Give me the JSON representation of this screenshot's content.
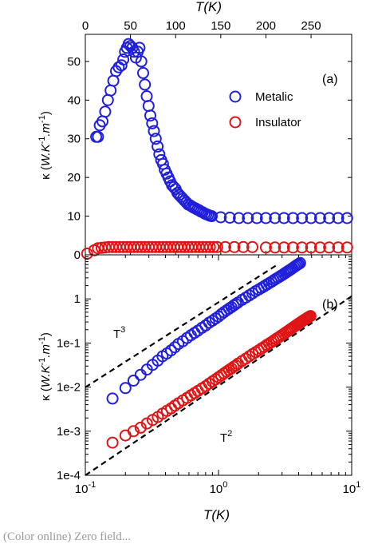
{
  "chart_data": [
    {
      "type": "scatter",
      "panel_label": "(a)",
      "xlabel": "T(K)",
      "ylabel": "κ (W.K-1.m-1)",
      "xlim": [
        0,
        295
      ],
      "ylim": [
        0,
        57
      ],
      "x_ticks": [
        "0",
        "50",
        "100",
        "150",
        "200",
        "250"
      ],
      "y_ticks": [
        "0",
        "10",
        "20",
        "30",
        "40",
        "50"
      ],
      "x_tick_values": [
        0,
        50,
        100,
        150,
        200,
        250
      ],
      "y_tick_values": [
        0,
        10,
        20,
        30,
        40,
        50
      ],
      "legend_position": "top-right",
      "series": [
        {
          "name": "Metalic",
          "color": "#1f1fdc",
          "x": [
            12,
            14,
            16,
            19,
            22,
            25,
            28,
            31,
            34,
            37,
            40,
            42,
            44,
            46,
            48,
            50,
            52,
            54,
            56,
            58,
            60,
            62,
            64,
            66,
            68,
            70,
            72,
            74,
            76,
            78,
            80,
            82,
            84,
            86,
            88,
            90,
            92,
            94,
            96,
            98,
            100,
            102,
            104,
            106,
            108,
            110,
            112,
            114,
            116,
            118,
            120,
            122,
            124,
            126,
            128,
            130,
            132,
            134,
            136,
            138,
            140,
            150,
            160,
            170,
            180,
            190,
            200,
            210,
            220,
            230,
            240,
            250,
            260,
            270,
            280,
            290
          ],
          "y": [
            30.5,
            30.5,
            33.5,
            34.5,
            37.0,
            40.0,
            42.5,
            45.0,
            47.5,
            48.5,
            49.0,
            50.5,
            52.5,
            53.5,
            54.5,
            54.0,
            53.5,
            52.5,
            51.0,
            52.5,
            53.5,
            50.0,
            47.0,
            44.0,
            41.0,
            38.5,
            36.0,
            34.0,
            32.0,
            30.0,
            28.0,
            26.0,
            24.5,
            23.5,
            22.0,
            21.0,
            20.0,
            19.0,
            18.0,
            17.5,
            17.0,
            16.0,
            15.5,
            15.0,
            14.5,
            14.0,
            13.5,
            13.0,
            12.8,
            12.5,
            12.2,
            12.0,
            11.7,
            11.5,
            11.2,
            11.0,
            10.7,
            10.5,
            10.3,
            10.1,
            10.0,
            9.7,
            9.6,
            9.5,
            9.5,
            9.5,
            9.5,
            9.5,
            9.5,
            9.5,
            9.5,
            9.5,
            9.5,
            9.5,
            9.5,
            9.5
          ]
        },
        {
          "name": "Insulator",
          "color": "#e01414",
          "x": [
            2,
            10,
            14,
            18,
            22,
            26,
            30,
            34,
            38,
            42,
            46,
            50,
            54,
            58,
            62,
            66,
            70,
            74,
            78,
            82,
            86,
            90,
            94,
            98,
            102,
            106,
            110,
            114,
            118,
            122,
            126,
            130,
            134,
            138,
            142,
            146,
            155,
            165,
            175,
            185,
            200,
            210,
            220,
            230,
            240,
            250,
            260,
            270,
            280,
            290
          ],
          "y": [
            0.3,
            1.2,
            1.7,
            1.8,
            1.9,
            2.0,
            2.0,
            2.0,
            2.0,
            2.0,
            2.0,
            2.0,
            2.0,
            2.0,
            2.0,
            2.0,
            2.0,
            2.0,
            2.0,
            2.0,
            2.0,
            2.0,
            2.0,
            2.0,
            2.0,
            2.0,
            2.0,
            2.0,
            2.0,
            2.0,
            2.0,
            2.0,
            2.0,
            2.0,
            2.0,
            2.0,
            2.0,
            2.0,
            2.0,
            2.0,
            1.9,
            1.9,
            1.9,
            1.9,
            1.9,
            1.9,
            1.9,
            1.9,
            1.9,
            1.9
          ]
        }
      ]
    },
    {
      "type": "scatter",
      "scale": "log-log",
      "panel_label": "(b)",
      "xlabel": "T(K)",
      "ylabel": "κ (W.K-1.m-1)",
      "xlim": [
        0.1,
        10
      ],
      "ylim": [
        0.0001,
        10
      ],
      "x_ticks": [
        "10-1",
        "100",
        "101"
      ],
      "y_ticks": [
        "1e-4",
        "1e-3",
        "1e-2",
        "1e-1",
        "1"
      ],
      "x_tick_values": [
        0.1,
        1,
        10
      ],
      "y_tick_values": [
        0.0001,
        0.001,
        0.01,
        0.1,
        1
      ],
      "annotations": [
        "T3",
        "T2"
      ],
      "reference_lines": [
        {
          "label": "T3",
          "x": [
            0.1,
            2.7
          ],
          "y": [
            0.0099,
            5.7
          ],
          "style": "dashed"
        },
        {
          "label": "T2",
          "x": [
            0.1,
            10
          ],
          "y": [
            0.0001,
            1.15
          ],
          "style": "dashed"
        }
      ],
      "series": [
        {
          "name": "Metalic",
          "color": "#1f1fdc",
          "x": [
            0.16,
            0.2,
            0.23,
            0.26,
            0.29,
            0.32,
            0.35,
            0.38,
            0.41,
            0.44,
            0.47,
            0.5,
            0.54,
            0.58,
            0.62,
            0.66,
            0.7,
            0.75,
            0.8,
            0.85,
            0.9,
            0.95,
            1.0,
            1.05,
            1.1,
            1.15,
            1.2,
            1.25,
            1.3,
            1.35,
            1.4,
            1.5,
            1.6,
            1.7,
            1.8,
            1.9,
            2.0,
            2.1,
            2.2,
            2.3,
            2.4,
            2.5,
            2.6,
            2.7,
            2.8,
            2.9,
            3.0,
            3.1,
            3.2,
            3.3,
            3.4,
            3.5,
            3.6,
            3.7,
            3.8,
            3.9,
            4.0,
            4.1
          ],
          "y": [
            0.0055,
            0.0095,
            0.014,
            0.019,
            0.025,
            0.032,
            0.04,
            0.05,
            0.058,
            0.068,
            0.08,
            0.095,
            0.11,
            0.13,
            0.15,
            0.17,
            0.19,
            0.22,
            0.25,
            0.29,
            0.32,
            0.36,
            0.4,
            0.45,
            0.5,
            0.55,
            0.6,
            0.65,
            0.71,
            0.77,
            0.83,
            0.95,
            1.07,
            1.2,
            1.34,
            1.5,
            1.63,
            1.78,
            1.93,
            2.1,
            2.27,
            2.45,
            2.65,
            2.85,
            3.05,
            3.25,
            3.45,
            3.7,
            3.95,
            4.2,
            4.45,
            4.7,
            5.0,
            5.3,
            5.6,
            5.9,
            6.2,
            6.5
          ]
        },
        {
          "name": "Insulator",
          "color": "#e01414",
          "x": [
            0.16,
            0.2,
            0.23,
            0.26,
            0.29,
            0.32,
            0.35,
            0.38,
            0.41,
            0.44,
            0.47,
            0.5,
            0.54,
            0.58,
            0.62,
            0.66,
            0.7,
            0.75,
            0.8,
            0.85,
            0.9,
            0.95,
            1.0,
            1.05,
            1.1,
            1.15,
            1.2,
            1.25,
            1.3,
            1.35,
            1.4,
            1.5,
            1.6,
            1.7,
            1.8,
            1.9,
            2.0,
            2.1,
            2.2,
            2.3,
            2.4,
            2.5,
            2.6,
            2.7,
            2.8,
            2.9,
            3.0,
            3.1,
            3.2,
            3.3,
            3.4,
            3.5,
            3.6,
            3.7,
            3.8,
            3.9,
            4.0,
            4.1,
            4.2,
            4.3,
            4.4,
            4.5,
            4.6,
            4.7,
            4.8,
            4.9
          ],
          "y": [
            0.00055,
            0.0008,
            0.001,
            0.0012,
            0.0015,
            0.0018,
            0.0021,
            0.0025,
            0.0029,
            0.0033,
            0.0038,
            0.0043,
            0.005,
            0.0057,
            0.0065,
            0.0073,
            0.0082,
            0.0093,
            0.0105,
            0.012,
            0.0135,
            0.015,
            0.0168,
            0.0185,
            0.0205,
            0.0225,
            0.0245,
            0.0265,
            0.029,
            0.031,
            0.034,
            0.039,
            0.044,
            0.05,
            0.056,
            0.062,
            0.068,
            0.075,
            0.082,
            0.09,
            0.097,
            0.105,
            0.114,
            0.123,
            0.132,
            0.142,
            0.152,
            0.163,
            0.174,
            0.185,
            0.197,
            0.21,
            0.222,
            0.235,
            0.248,
            0.262,
            0.276,
            0.29,
            0.305,
            0.32,
            0.335,
            0.35,
            0.365,
            0.38,
            0.395,
            0.41
          ]
        }
      ]
    }
  ],
  "caption_fragment": "(Color online) Zero field...",
  "legend": {
    "metalic": "Metalic",
    "insulator": "Insulator"
  }
}
